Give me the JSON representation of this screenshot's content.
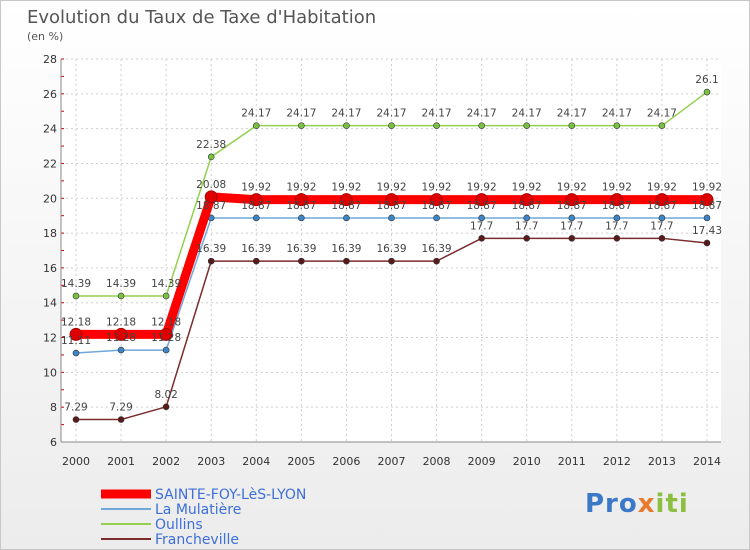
{
  "chart_data": {
    "type": "line",
    "title": "Evolution du Taux de Taxe d'Habitation",
    "subtitle": "(en %)",
    "x": [
      "2000",
      "2001",
      "2002",
      "2003",
      "2004",
      "2005",
      "2006",
      "2007",
      "2008",
      "2009",
      "2010",
      "2011",
      "2012",
      "2013",
      "2014"
    ],
    "ylim": [
      6,
      28
    ],
    "yticks": [
      6,
      8,
      10,
      12,
      14,
      16,
      18,
      20,
      22,
      24,
      26,
      28
    ],
    "grid": true,
    "legend_position": "bottom-left",
    "series": [
      {
        "name": "SAINTE-FOY-LèS-LYON",
        "color": "#ff0000",
        "marker": "#dd0000",
        "thick": true,
        "values": [
          12.18,
          12.18,
          12.18,
          20.08,
          19.92,
          19.92,
          19.92,
          19.92,
          19.92,
          19.92,
          19.92,
          19.92,
          19.92,
          19.92,
          19.92
        ],
        "labels": [
          "12.18",
          "12.18",
          "12.18",
          "20.08",
          "19.92",
          "19.92",
          "19.92",
          "19.92",
          "19.92",
          "19.92",
          "19.92",
          "19.92",
          "19.92",
          "19.92",
          "19.92"
        ]
      },
      {
        "name": "La Mulatière",
        "color": "#6fa8dc",
        "marker": "#3d85c6",
        "thick": false,
        "values": [
          11.11,
          11.28,
          11.28,
          18.87,
          18.87,
          18.87,
          18.87,
          18.87,
          18.87,
          18.87,
          18.87,
          18.87,
          18.87,
          18.87,
          18.87
        ],
        "labels": [
          "11.11",
          "11.28",
          "11.28",
          "18.87",
          "18.87",
          "18.87",
          "18.87",
          "18.87",
          "18.87",
          "18.87",
          "18.87",
          "18.87",
          "18.87",
          "18.87",
          "18.87"
        ]
      },
      {
        "name": "Oullins",
        "color": "#93d050",
        "marker": "#7ac143",
        "thick": false,
        "values": [
          14.39,
          14.39,
          14.39,
          22.38,
          24.17,
          24.17,
          24.17,
          24.17,
          24.17,
          24.17,
          24.17,
          24.17,
          24.17,
          24.17,
          26.1
        ],
        "labels": [
          "14.39",
          "14.39",
          "14.39",
          "22.38",
          "24.17",
          "24.17",
          "24.17",
          "24.17",
          "24.17",
          "24.17",
          "24.17",
          "24.17",
          "24.17",
          "24.17",
          "26.1"
        ]
      },
      {
        "name": "Francheville",
        "color": "#7a2c2c",
        "marker": "#5a1a1a",
        "thick": false,
        "values": [
          7.29,
          7.29,
          8.02,
          16.39,
          16.39,
          16.39,
          16.39,
          16.39,
          16.39,
          17.7,
          17.7,
          17.7,
          17.7,
          17.7,
          17.43
        ],
        "labels": [
          "7.29",
          "7.29",
          "8.02",
          "16.39",
          "16.39",
          "16.39",
          "16.39",
          "16.39",
          "16.39",
          "17.7",
          "17.7",
          "17.7",
          "17.7",
          "17.7",
          "17.43"
        ]
      }
    ]
  },
  "branding": {
    "logo_part1": "Pro",
    "logo_part2": "x",
    "logo_part3": "iti"
  }
}
